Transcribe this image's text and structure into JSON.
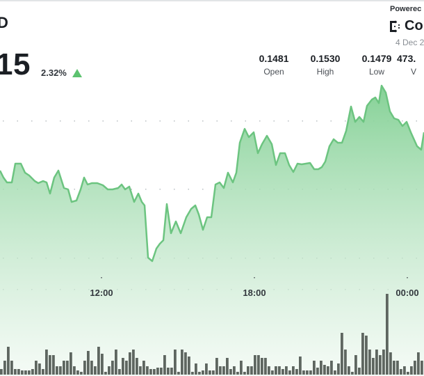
{
  "header": {
    "pair": "D",
    "price": "15",
    "change_pct": "2.32%",
    "change_direction": "up",
    "up_color": "#5cc26f"
  },
  "stats": [
    {
      "value": "0.1481",
      "label": "Open"
    },
    {
      "value": "0.1530",
      "label": "High"
    },
    {
      "value": "0.1479",
      "label": "Low"
    },
    {
      "value": "473.",
      "label": "V"
    }
  ],
  "branding": {
    "powered_label": "Powerec",
    "brand_name": "Co",
    "date": "4 Dec 2"
  },
  "chart_data": {
    "type": "area",
    "title": "",
    "xlabel": "",
    "ylabel": "",
    "x_ticks": [
      "12:00",
      "18:00",
      "00:00"
    ],
    "x_tick_positions": [
      146,
      366,
      586
    ],
    "grid": "dotted horizontal",
    "line_color": "#6cc480",
    "fill_color_top": "#7fcf91",
    "volume_bar_color": "#5e6660",
    "price_points": [
      [
        0,
        245
      ],
      [
        5,
        255
      ],
      [
        10,
        262
      ],
      [
        17,
        262
      ],
      [
        22,
        235
      ],
      [
        30,
        235
      ],
      [
        36,
        248
      ],
      [
        42,
        252
      ],
      [
        50,
        260
      ],
      [
        55,
        263
      ],
      [
        62,
        260
      ],
      [
        67,
        262
      ],
      [
        72,
        278
      ],
      [
        78,
        255
      ],
      [
        84,
        245
      ],
      [
        92,
        270
      ],
      [
        98,
        272
      ],
      [
        103,
        290
      ],
      [
        110,
        288
      ],
      [
        116,
        272
      ],
      [
        121,
        255
      ],
      [
        126,
        265
      ],
      [
        132,
        263
      ],
      [
        140,
        263
      ],
      [
        148,
        266
      ],
      [
        155,
        272
      ],
      [
        162,
        272
      ],
      [
        170,
        270
      ],
      [
        175,
        265
      ],
      [
        180,
        272
      ],
      [
        186,
        268
      ],
      [
        193,
        290
      ],
      [
        199,
        278
      ],
      [
        204,
        290
      ],
      [
        208,
        295
      ],
      [
        213,
        370
      ],
      [
        219,
        375
      ],
      [
        225,
        357
      ],
      [
        230,
        350
      ],
      [
        235,
        345
      ],
      [
        240,
        293
      ],
      [
        246,
        335
      ],
      [
        253,
        318
      ],
      [
        260,
        335
      ],
      [
        268,
        312
      ],
      [
        275,
        300
      ],
      [
        281,
        295
      ],
      [
        286,
        308
      ],
      [
        292,
        330
      ],
      [
        298,
        312
      ],
      [
        304,
        312
      ],
      [
        310,
        265
      ],
      [
        316,
        262
      ],
      [
        322,
        270
      ],
      [
        328,
        248
      ],
      [
        335,
        262
      ],
      [
        340,
        248
      ],
      [
        345,
        205
      ],
      [
        352,
        185
      ],
      [
        358,
        197
      ],
      [
        365,
        190
      ],
      [
        371,
        220
      ],
      [
        377,
        207
      ],
      [
        384,
        195
      ],
      [
        391,
        207
      ],
      [
        397,
        237
      ],
      [
        403,
        220
      ],
      [
        410,
        220
      ],
      [
        416,
        237
      ],
      [
        422,
        247
      ],
      [
        428,
        235
      ],
      [
        434,
        236
      ],
      [
        440,
        235
      ],
      [
        446,
        234
      ],
      [
        452,
        243
      ],
      [
        458,
        243
      ],
      [
        463,
        240
      ],
      [
        468,
        232
      ],
      [
        474,
        210
      ],
      [
        480,
        200
      ],
      [
        486,
        205
      ],
      [
        492,
        205
      ],
      [
        498,
        188
      ],
      [
        505,
        153
      ],
      [
        511,
        175
      ],
      [
        517,
        168
      ],
      [
        523,
        175
      ],
      [
        528,
        152
      ],
      [
        535,
        143
      ],
      [
        540,
        140
      ],
      [
        545,
        148
      ],
      [
        549,
        123
      ],
      [
        555,
        133
      ],
      [
        561,
        160
      ],
      [
        567,
        170
      ],
      [
        573,
        172
      ],
      [
        579,
        181
      ],
      [
        585,
        175
      ],
      [
        591,
        190
      ],
      [
        600,
        210
      ],
      [
        606,
        215
      ],
      [
        610,
        190
      ]
    ],
    "volume_heights": [
      4,
      10,
      20,
      10,
      4,
      4,
      3,
      3,
      3,
      4,
      10,
      8,
      4,
      18,
      14,
      14,
      6,
      6,
      10,
      10,
      16,
      6,
      3,
      2,
      10,
      17,
      10,
      6,
      20,
      15,
      2,
      6,
      10,
      18,
      4,
      12,
      10,
      16,
      18,
      12,
      6,
      10,
      6,
      4,
      4,
      5,
      5,
      14,
      5,
      5,
      18,
      2,
      18,
      16,
      13,
      2,
      8,
      2,
      3,
      8,
      3,
      3,
      12,
      6,
      6,
      12,
      4,
      6,
      2,
      10,
      2,
      6,
      6,
      14,
      14,
      12,
      12,
      6,
      3,
      6,
      6,
      4,
      6,
      3,
      6,
      4,
      13,
      3,
      3,
      3,
      10,
      5,
      10,
      7,
      6,
      10,
      3,
      8,
      30,
      18,
      6,
      2,
      14,
      5,
      30,
      28,
      18,
      12,
      18,
      14,
      18,
      58,
      16,
      10,
      10,
      4,
      6,
      2,
      6,
      10,
      16,
      10
    ],
    "volume_bar_left": [
      0,
      5,
      13,
      22,
      30,
      38,
      44,
      50,
      56,
      62,
      70,
      78,
      86,
      92,
      100,
      108,
      116,
      124,
      132,
      140,
      148,
      156
    ]
  }
}
